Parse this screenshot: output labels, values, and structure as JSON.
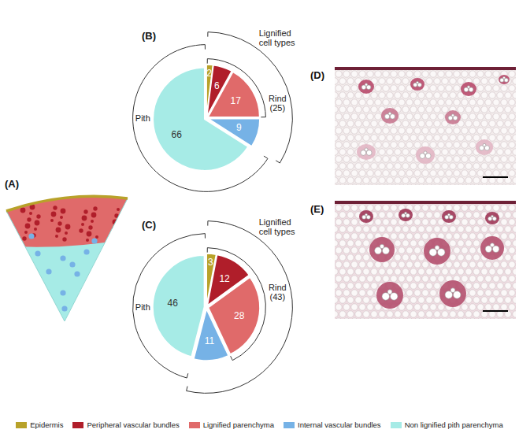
{
  "figure": {
    "panels": {
      "A": "(A)",
      "D": "(D)",
      "E": "(E)"
    }
  },
  "chart_data": [
    {
      "type": "pie",
      "title": "(B)",
      "categories": [
        "Epidermis",
        "Peripheral vascular bundles",
        "Lignified parenchyma",
        "Internal vascular bundles",
        "Non lignified pith parenchyma"
      ],
      "values": [
        2,
        6,
        17,
        9,
        66
      ],
      "colors": [
        "#b8a22a",
        "#b01e2a",
        "#e06a6a",
        "#76b2e6",
        "#a6ebe6"
      ],
      "annotations": [
        "Lignified cell types",
        "Rind (25)",
        "Pith"
      ],
      "data_labels": true,
      "legend": "bottom"
    },
    {
      "type": "pie",
      "title": "(C)",
      "categories": [
        "Epidermis",
        "Peripheral vascular bundles",
        "Lignified parenchyma",
        "Internal vascular bundles",
        "Non lignified pith parenchyma"
      ],
      "values": [
        3,
        12,
        28,
        11,
        46
      ],
      "colors": [
        "#b8a22a",
        "#b01e2a",
        "#e06a6a",
        "#76b2e6",
        "#a6ebe6"
      ],
      "annotations": [
        "Lignified cell types",
        "Rind (43)",
        "Pith"
      ],
      "data_labels": true,
      "legend": "bottom"
    }
  ]
}
